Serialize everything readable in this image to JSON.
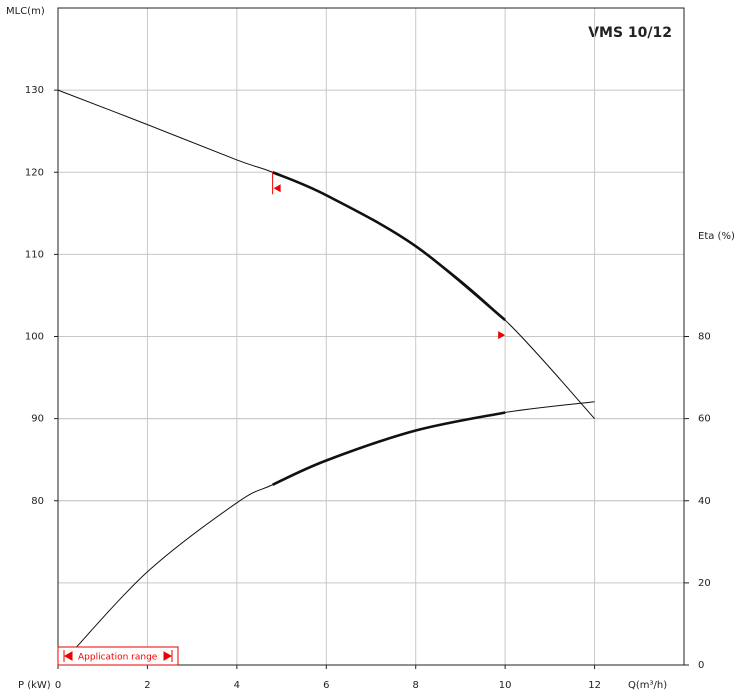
{
  "chart_data": {
    "type": "line",
    "title": "VMS 10/12",
    "ylabel": "MLC(m)",
    "y2label": "Eta (%)",
    "xlabel": "Q(m³/h)",
    "x2label": "P (kW)",
    "xlim": [
      0,
      14
    ],
    "xticks": [
      0,
      2,
      4,
      6,
      8,
      10,
      12
    ],
    "ylim": [
      60,
      140
    ],
    "yticks": [
      80,
      90,
      100,
      110,
      120,
      130
    ],
    "y2lim": [
      0,
      160
    ],
    "y2ticks": [
      0,
      20,
      40,
      60,
      80
    ],
    "grid": true,
    "application_range": [
      4.8,
      10
    ],
    "application_range_label": "Application range",
    "series": [
      {
        "color": "#111111",
        "x": [
          0,
          2,
          4,
          4.8,
          6,
          8,
          10,
          12
        ],
        "values": [
          130,
          125.8,
          121.5,
          120,
          117.2,
          111,
          102,
          90
        ]
      },
      {
        "color": "#111111",
        "axis": "y2",
        "x": [
          0.3,
          2,
          4,
          4.8,
          6,
          8,
          10,
          12
        ],
        "values": [
          3,
          22.7,
          39.5,
          43.9,
          49.8,
          57.1,
          61.5,
          64.1
        ]
      }
    ]
  }
}
